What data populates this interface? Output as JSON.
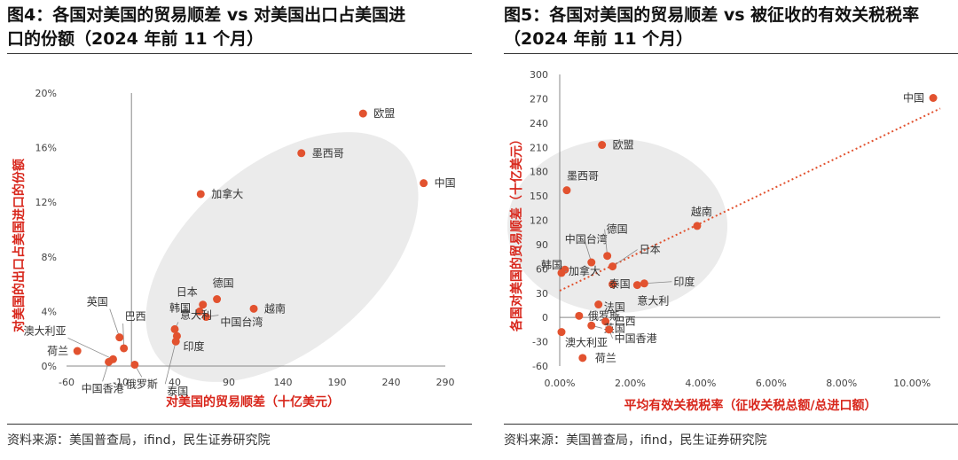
{
  "colors": {
    "accent": "#E2522F",
    "axis_label": "#D8261B",
    "ellipse": "#EBEBEB",
    "trend": "#E2522F"
  },
  "left": {
    "title_line1": "图4：各国对美国的贸易顺差  vs  对美国出口占美国进",
    "title_line2": "口的份额（2024 年前 11 个月）",
    "source": "资料来源：美国普查局，ifind，民生证券研究院"
  },
  "right": {
    "title_line1": "图5：各国对美国的贸易顺差 vs 被征收的有效关税税率",
    "title_line2": "（2024 年前 11 个月）",
    "source": "资料来源：美国普查局，ifind，民生证券研究院"
  },
  "chart_data": [
    {
      "type": "scatter",
      "title": "各国对美国的贸易顺差 vs 对美国出口占美国进口的份额（2024 年前 11 个月）",
      "xlabel": "对美国的贸易顺差（十亿美元）",
      "ylabel": "对美国的出口占美国进口的份额",
      "xlim": [
        -60,
        290
      ],
      "ylim": [
        0,
        20
      ],
      "x_ticks": [
        "-60",
        "-10",
        "40",
        "90",
        "140",
        "190",
        "240",
        "290"
      ],
      "y_ticks": [
        "0%",
        "4%",
        "8%",
        "12%",
        "16%",
        "20%"
      ],
      "points": [
        {
          "name": "欧盟",
          "x": 214,
          "y": 18.5
        },
        {
          "name": "墨西哥",
          "x": 157,
          "y": 15.6
        },
        {
          "name": "中国",
          "x": 270,
          "y": 13.4
        },
        {
          "name": "加拿大",
          "x": 64,
          "y": 12.6
        },
        {
          "name": "德国",
          "x": 79,
          "y": 4.9
        },
        {
          "name": "日本",
          "x": 66,
          "y": 4.5
        },
        {
          "name": "韩国",
          "x": 63,
          "y": 4.0
        },
        {
          "name": "中国台湾",
          "x": 69,
          "y": 3.6
        },
        {
          "name": "越南",
          "x": 113,
          "y": 4.2
        },
        {
          "name": "意大利",
          "x": 40,
          "y": 2.7
        },
        {
          "name": "印度",
          "x": 42,
          "y": 2.2
        },
        {
          "name": "泰国",
          "x": 41,
          "y": 1.8
        },
        {
          "name": "巴西",
          "x": -7,
          "y": 1.3
        },
        {
          "name": "英国",
          "x": -11,
          "y": 2.1
        },
        {
          "name": "澳大利亚",
          "x": -17,
          "y": 0.5
        },
        {
          "name": "中国香港",
          "x": -21,
          "y": 0.3
        },
        {
          "name": "俄罗斯",
          "x": 3,
          "y": 0.1
        },
        {
          "name": "荷兰",
          "x": -50,
          "y": 1.1
        }
      ]
    },
    {
      "type": "scatter",
      "title": "各国对美国的贸易顺差 vs 被征收的有效关税税率（2024 年前 11 个月）",
      "xlabel": "平均有效关税税率（征收关税总额/总进口额）",
      "ylabel": "各国对美国的贸易顺差（十亿美元）",
      "xlim": [
        0,
        10.8
      ],
      "ylim": [
        -60,
        300
      ],
      "x_ticks": [
        "0.00%",
        "2.00%",
        "4.00%",
        "6.00%",
        "8.00%",
        "10.00%"
      ],
      "y_ticks": [
        "-60",
        "-30",
        "0",
        "30",
        "60",
        "90",
        "120",
        "150",
        "180",
        "210",
        "240",
        "270",
        "300"
      ],
      "trendline": {
        "x": [
          0,
          10.8
        ],
        "y": [
          33,
          258
        ]
      },
      "points": [
        {
          "name": "中国",
          "x": 10.6,
          "y": 271
        },
        {
          "name": "欧盟",
          "x": 1.2,
          "y": 213
        },
        {
          "name": "墨西哥",
          "x": 0.2,
          "y": 157
        },
        {
          "name": "越南",
          "x": 3.9,
          "y": 113
        },
        {
          "name": "中国台湾",
          "x": 0.9,
          "y": 68
        },
        {
          "name": "德国",
          "x": 1.35,
          "y": 76
        },
        {
          "name": "日本",
          "x": 1.5,
          "y": 63
        },
        {
          "name": "韩国",
          "x": 0.15,
          "y": 59
        },
        {
          "name": "加拿大",
          "x": 0.05,
          "y": 55
        },
        {
          "name": "泰国",
          "x": 1.5,
          "y": 41
        },
        {
          "name": "印度",
          "x": 2.4,
          "y": 42
        },
        {
          "name": "意大利",
          "x": 2.2,
          "y": 40
        },
        {
          "name": "法国",
          "x": 1.1,
          "y": 16
        },
        {
          "name": "俄罗斯",
          "x": 0.55,
          "y": 2
        },
        {
          "name": "巴西",
          "x": 1.3,
          "y": -5
        },
        {
          "name": "英国",
          "x": 0.9,
          "y": -10
        },
        {
          "name": "中国香港",
          "x": 1.4,
          "y": -15
        },
        {
          "name": "澳大利亚",
          "x": 0.05,
          "y": -18
        },
        {
          "name": "荷兰",
          "x": 0.65,
          "y": -50
        }
      ]
    }
  ]
}
